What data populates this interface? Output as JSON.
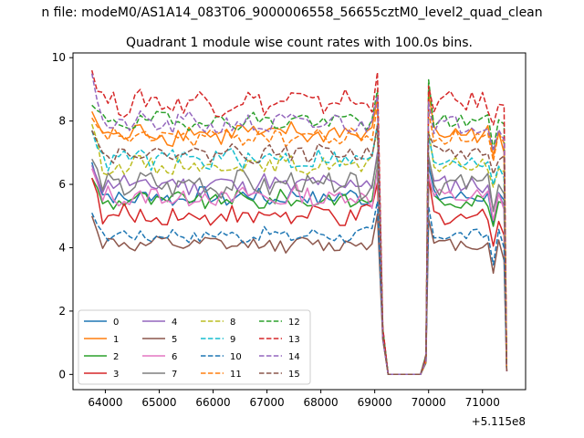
{
  "chart_data": {
    "type": "line",
    "suptitle": "n file: modeM0/AS1A14_083T06_9000006558_56655cztM0_level2_quad_clean",
    "title": "Quadrant 1 module wise count rates with 100.0s bins.",
    "xlabel": "",
    "ylabel": "",
    "x_offset_label": "+5.115e8",
    "xlim": [
      63400,
      71800
    ],
    "ylim": [
      -0.48,
      10.15
    ],
    "xticks": [
      64000,
      65000,
      66000,
      67000,
      68000,
      69000,
      70000,
      71000
    ],
    "xtick_labels": [
      "64000",
      "65000",
      "66000",
      "67000",
      "68000",
      "69000",
      "70000",
      "71000"
    ],
    "yticks": [
      0,
      2,
      4,
      6,
      8,
      10
    ],
    "ytick_labels": [
      "0",
      "2",
      "4",
      "6",
      "8",
      "10"
    ],
    "grid": false,
    "legend": {
      "position": "lower-left",
      "columns": 4
    },
    "segments": {
      "seg1": {
        "x_start": 63750,
        "x_step": 100,
        "count": 54
      },
      "drop": {
        "x": [
          69150,
          69250,
          69850,
          69950
        ]
      },
      "seg2": {
        "x_start": 70000,
        "x_step": 100,
        "count": 15
      },
      "x_end": 71450
    },
    "series": [
      {
        "name": "0",
        "color": "#1f77b4",
        "dashed": false,
        "level": 5.6,
        "noise": 0.25,
        "start": 6.7,
        "peak2": 6.6,
        "end2": 5.5
      },
      {
        "name": "1",
        "color": "#ff7f0e",
        "dashed": false,
        "level": 7.6,
        "noise": 0.3,
        "start": 8.3,
        "peak2": 8.9,
        "end2": 7.0
      },
      {
        "name": "2",
        "color": "#2ca02c",
        "dashed": false,
        "level": 5.5,
        "noise": 0.25,
        "start": 6.2,
        "peak2": 6.1,
        "end2": 5.4
      },
      {
        "name": "3",
        "color": "#d62728",
        "dashed": false,
        "level": 5.0,
        "noise": 0.3,
        "start": 6.2,
        "peak2": 6.2,
        "end2": 4.4
      },
      {
        "name": "4",
        "color": "#9467bd",
        "dashed": false,
        "level": 6.0,
        "noise": 0.3,
        "start": 6.6,
        "peak2": 6.8,
        "end2": 5.3
      },
      {
        "name": "5",
        "color": "#8c564b",
        "dashed": false,
        "level": 4.1,
        "noise": 0.2,
        "start": 5.0,
        "peak2": 4.9,
        "end2": 3.6
      },
      {
        "name": "6",
        "color": "#e377c2",
        "dashed": false,
        "level": 5.6,
        "noise": 0.3,
        "start": 6.5,
        "peak2": 6.3,
        "end2": 5.2
      },
      {
        "name": "7",
        "color": "#7f7f7f",
        "dashed": false,
        "level": 6.0,
        "noise": 0.35,
        "start": 6.8,
        "peak2": 6.9,
        "end2": 5.7
      },
      {
        "name": "8",
        "color": "#bcbd22",
        "dashed": true,
        "level": 6.6,
        "noise": 0.25,
        "start": 7.9,
        "peak2": 7.7,
        "end2": 6.4
      },
      {
        "name": "9",
        "color": "#17becf",
        "dashed": true,
        "level": 6.8,
        "noise": 0.3,
        "start": 7.7,
        "peak2": 7.5,
        "end2": 6.2
      },
      {
        "name": "10",
        "color": "#1f77b4",
        "dashed": true,
        "level": 4.4,
        "noise": 0.2,
        "start": 5.1,
        "peak2": 5.3,
        "end2": 4.0
      },
      {
        "name": "11",
        "color": "#ff7f0e",
        "dashed": true,
        "level": 7.5,
        "noise": 0.25,
        "start": 8.1,
        "peak2": 8.3,
        "end2": 7.3
      },
      {
        "name": "12",
        "color": "#2ca02c",
        "dashed": true,
        "level": 8.0,
        "noise": 0.25,
        "start": 8.5,
        "peak2": 9.3,
        "end2": 7.9
      },
      {
        "name": "13",
        "color": "#d62728",
        "dashed": true,
        "level": 8.6,
        "noise": 0.35,
        "start": 9.6,
        "peak2": 9.1,
        "end2": 8.5
      },
      {
        "name": "14",
        "color": "#9467bd",
        "dashed": true,
        "level": 7.9,
        "noise": 0.3,
        "start": 9.5,
        "peak2": 8.6,
        "end2": 7.4
      },
      {
        "name": "15",
        "color": "#8c564b",
        "dashed": true,
        "level": 7.0,
        "noise": 0.25,
        "start": 7.7,
        "peak2": 7.6,
        "end2": 6.9
      }
    ]
  }
}
